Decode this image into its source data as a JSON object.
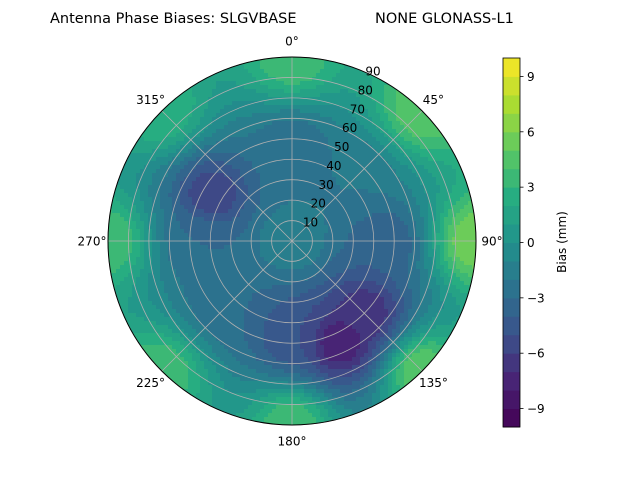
{
  "chart_data": {
    "type": "heatmap",
    "projection": "polar",
    "title_left": "Antenna Phase Biases: SLGVBASE",
    "title_right": "NONE GLONASS-L1",
    "angular_labels": [
      "0°",
      "45°",
      "90°",
      "135°",
      "180°",
      "225°",
      "270°",
      "315°"
    ],
    "angular_direction": "clockwise",
    "radial_ticks": [
      10,
      20,
      30,
      40,
      50,
      60,
      70,
      80,
      90
    ],
    "radial_label_angle_deg": 22.5,
    "rlim": [
      0,
      90
    ],
    "grid": true,
    "colormap": "viridis",
    "colorbar": {
      "label": "Bias (mm)",
      "vmin": -10,
      "vmax": 10,
      "levels": 20,
      "ticks": [
        -9,
        -6,
        -3,
        0,
        3,
        6,
        9
      ],
      "tick_labels": [
        "−9",
        "−6",
        "−3",
        "0",
        "3",
        "6",
        "9"
      ]
    },
    "field_description_points": [
      {
        "azimuth_deg": 0,
        "zenith_deg": 0,
        "bias_mm": -1
      },
      {
        "azimuth_deg": 0,
        "zenith_deg": 45,
        "bias_mm": -3
      },
      {
        "azimuth_deg": 0,
        "zenith_deg": 90,
        "bias_mm": 4
      },
      {
        "azimuth_deg": 45,
        "zenith_deg": 45,
        "bias_mm": -2
      },
      {
        "azimuth_deg": 45,
        "zenith_deg": 90,
        "bias_mm": 5
      },
      {
        "azimuth_deg": 90,
        "zenith_deg": 45,
        "bias_mm": -4
      },
      {
        "azimuth_deg": 90,
        "zenith_deg": 90,
        "bias_mm": 6
      },
      {
        "azimuth_deg": 135,
        "zenith_deg": 50,
        "bias_mm": -7
      },
      {
        "azimuth_deg": 135,
        "zenith_deg": 90,
        "bias_mm": 5
      },
      {
        "azimuth_deg": 155,
        "zenith_deg": 55,
        "bias_mm": -8
      },
      {
        "azimuth_deg": 180,
        "zenith_deg": 45,
        "bias_mm": -5
      },
      {
        "azimuth_deg": 180,
        "zenith_deg": 90,
        "bias_mm": 4
      },
      {
        "azimuth_deg": 225,
        "zenith_deg": 45,
        "bias_mm": -3
      },
      {
        "azimuth_deg": 225,
        "zenith_deg": 90,
        "bias_mm": 4
      },
      {
        "azimuth_deg": 270,
        "zenith_deg": 45,
        "bias_mm": -3
      },
      {
        "azimuth_deg": 270,
        "zenith_deg": 90,
        "bias_mm": 4
      },
      {
        "azimuth_deg": 300,
        "zenith_deg": 45,
        "bias_mm": -6
      },
      {
        "azimuth_deg": 315,
        "zenith_deg": 90,
        "bias_mm": 3
      }
    ]
  }
}
